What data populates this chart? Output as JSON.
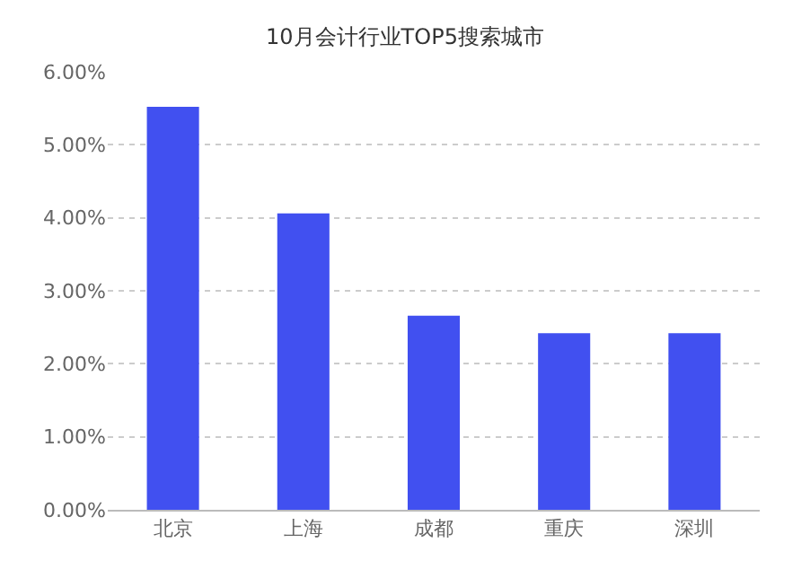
{
  "chart_data": {
    "type": "bar",
    "title": "10月会计行业TOP5搜索城市",
    "categories": [
      "北京",
      "上海",
      "成都",
      "重庆",
      "深圳"
    ],
    "values": [
      5.52,
      4.06,
      2.66,
      2.42,
      2.42
    ],
    "color": "#4150f0",
    "ylim": [
      0,
      6
    ],
    "yticks": [
      {
        "value": 0,
        "label": "0.00%"
      },
      {
        "value": 1,
        "label": "1.00%"
      },
      {
        "value": 2,
        "label": "2.00%"
      },
      {
        "value": 3,
        "label": "3.00%"
      },
      {
        "value": 4,
        "label": "4.00%"
      },
      {
        "value": 5,
        "label": "5.00%"
      },
      {
        "value": 6,
        "label": "6.00%"
      }
    ],
    "grid": "y"
  }
}
